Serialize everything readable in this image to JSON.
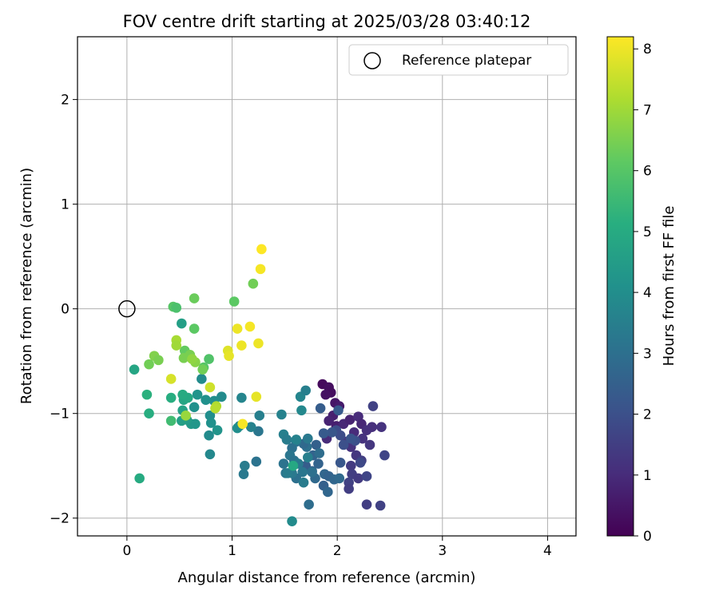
{
  "chart_data": {
    "type": "scatter",
    "title": "FOV centre drift starting at 2025/03/28 03:40:12",
    "xlabel": "Angular distance from reference (arcmin)",
    "ylabel": "Rotation from reference (arcmin)",
    "xlim": [
      -0.47,
      4.27
    ],
    "ylim": [
      -2.17,
      2.6
    ],
    "xticks": [
      0,
      1,
      2,
      3,
      4
    ],
    "yticks": [
      -2,
      -1,
      0,
      1,
      2
    ],
    "grid": true,
    "legend": {
      "placement": "top-right",
      "entries": [
        "Reference platepar"
      ]
    },
    "reference_point": {
      "x": 0,
      "y": 0
    },
    "colorbar": {
      "label": "Hours from first FF file",
      "colormap": "viridis",
      "range": [
        0,
        8.2
      ],
      "ticks": [
        0,
        1,
        2,
        3,
        4,
        5,
        6,
        7,
        8
      ]
    },
    "points": [
      [
        1.86,
        -0.72,
        0.2
      ],
      [
        1.92,
        -0.75,
        0.3
      ],
      [
        1.94,
        -0.8,
        0.3
      ],
      [
        1.89,
        -0.82,
        0.4
      ],
      [
        1.98,
        -0.9,
        0.5
      ],
      [
        2.02,
        -0.93,
        0.6
      ],
      [
        1.96,
        -1.02,
        0.7
      ],
      [
        1.92,
        -1.07,
        0.8
      ],
      [
        1.99,
        -1.12,
        0.7
      ],
      [
        2.06,
        -1.1,
        0.9
      ],
      [
        2.12,
        -1.06,
        0.8
      ],
      [
        2.2,
        -1.03,
        1.0
      ],
      [
        2.23,
        -1.1,
        0.9
      ],
      [
        2.16,
        -1.18,
        1.0
      ],
      [
        2.28,
        -1.16,
        1.1
      ],
      [
        2.33,
        -1.13,
        1.1
      ],
      [
        2.42,
        -1.13,
        1.2
      ],
      [
        2.24,
        -1.24,
        1.2
      ],
      [
        2.31,
        -1.3,
        1.3
      ],
      [
        2.08,
        -1.27,
        1.4
      ],
      [
        2.13,
        -1.32,
        1.2
      ],
      [
        2.18,
        -1.4,
        1.3
      ],
      [
        2.23,
        -1.45,
        1.5
      ],
      [
        2.13,
        -1.5,
        1.4
      ],
      [
        2.14,
        -1.58,
        1.5
      ],
      [
        2.2,
        -1.62,
        1.4
      ],
      [
        2.11,
        -1.66,
        1.6
      ],
      [
        2.11,
        -1.72,
        1.5
      ],
      [
        2.28,
        -1.6,
        1.7
      ],
      [
        2.28,
        -1.87,
        1.5
      ],
      [
        2.41,
        -1.88,
        1.6
      ],
      [
        2.45,
        -1.4,
        1.7
      ],
      [
        2.34,
        -0.93,
        1.6
      ],
      [
        2.22,
        -1.47,
        1.8
      ],
      [
        1.9,
        -1.24,
        1.0
      ],
      [
        1.99,
        -1.16,
        1.9
      ],
      [
        2.03,
        -1.21,
        1.9
      ],
      [
        2.06,
        -1.3,
        2.0
      ],
      [
        2.17,
        -1.26,
        2.0
      ],
      [
        2.13,
        -1.24,
        2.1
      ],
      [
        1.95,
        -1.18,
        2.2
      ],
      [
        2.03,
        -1.47,
        2.2
      ],
      [
        2.01,
        -0.97,
        2.3
      ],
      [
        1.84,
        -0.95,
        2.4
      ],
      [
        1.87,
        -1.19,
        2.3
      ],
      [
        1.8,
        -1.3,
        2.5
      ],
      [
        1.77,
        -1.4,
        2.6
      ],
      [
        1.7,
        -1.5,
        2.4
      ],
      [
        1.76,
        -1.55,
        2.5
      ],
      [
        1.82,
        -1.48,
        2.6
      ],
      [
        1.88,
        -1.58,
        2.7
      ],
      [
        1.92,
        -1.6,
        2.6
      ],
      [
        1.97,
        -1.63,
        2.7
      ],
      [
        2.02,
        -1.62,
        2.8
      ],
      [
        1.87,
        -1.69,
        2.5
      ],
      [
        1.91,
        -1.75,
        2.7
      ],
      [
        1.73,
        -1.87,
        2.9
      ],
      [
        1.79,
        -1.62,
        2.8
      ],
      [
        1.76,
        -1.56,
        3.0
      ],
      [
        1.83,
        -1.38,
        2.9
      ],
      [
        1.71,
        -1.32,
        3.0
      ],
      [
        1.68,
        -1.29,
        2.8
      ],
      [
        1.61,
        -1.27,
        3.1
      ],
      [
        1.57,
        -1.33,
        3.0
      ],
      [
        1.55,
        -1.4,
        3.2
      ],
      [
        1.59,
        -1.45,
        3.1
      ],
      [
        1.63,
        -1.48,
        3.3
      ],
      [
        1.67,
        -1.56,
        3.2
      ],
      [
        1.61,
        -1.62,
        3.0
      ],
      [
        1.57,
        -1.57,
        3.3
      ],
      [
        1.49,
        -1.48,
        3.1
      ],
      [
        1.51,
        -1.57,
        3.2
      ],
      [
        1.53,
        -1.57,
        3.4
      ],
      [
        1.68,
        -1.66,
        3.4
      ],
      [
        1.72,
        -1.42,
        3.5
      ],
      [
        1.72,
        -1.24,
        3.3
      ],
      [
        1.49,
        -1.2,
        3.5
      ],
      [
        1.52,
        -1.25,
        3.4
      ],
      [
        1.47,
        -1.01,
        3.6
      ],
      [
        1.65,
        -0.84,
        3.7
      ],
      [
        1.7,
        -0.78,
        3.5
      ],
      [
        1.66,
        -0.97,
        3.8
      ],
      [
        1.61,
        -1.25,
        3.6
      ],
      [
        1.57,
        -2.03,
        3.9
      ],
      [
        1.25,
        -1.17,
        3.2
      ],
      [
        1.26,
        -1.02,
        3.5
      ],
      [
        1.23,
        -1.46,
        3.1
      ],
      [
        1.11,
        -1.58,
        3.3
      ],
      [
        1.12,
        -1.5,
        3.4
      ],
      [
        1.18,
        -1.13,
        3.6
      ],
      [
        1.09,
        -0.85,
        3.7
      ],
      [
        1.07,
        -1.12,
        3.8
      ],
      [
        1.05,
        -1.14,
        4.0
      ],
      [
        0.9,
        -0.84,
        3.9
      ],
      [
        0.79,
        -1.39,
        3.8
      ],
      [
        0.78,
        -1.21,
        3.9
      ],
      [
        0.79,
        -1.02,
        4.0
      ],
      [
        0.8,
        -1.09,
        4.1
      ],
      [
        0.83,
        -0.88,
        4.0
      ],
      [
        0.86,
        -1.16,
        4.2
      ],
      [
        0.75,
        -0.87,
        4.1
      ],
      [
        0.71,
        -0.67,
        3.9
      ],
      [
        0.67,
        -0.82,
        4.2
      ],
      [
        0.64,
        -0.94,
        4.1
      ],
      [
        0.61,
        -1.1,
        4.4
      ],
      [
        0.65,
        -1.1,
        4.3
      ],
      [
        0.57,
        -1.06,
        4.5
      ],
      [
        0.52,
        -1.07,
        4.6
      ],
      [
        0.53,
        -0.97,
        4.7
      ],
      [
        0.54,
        -0.87,
        4.8
      ],
      [
        0.58,
        -0.85,
        4.9
      ],
      [
        0.53,
        -0.82,
        5.0
      ],
      [
        0.42,
        -0.85,
        5.1
      ],
      [
        0.52,
        -0.14,
        4.6
      ],
      [
        0.12,
        -1.62,
        5.0
      ],
      [
        0.07,
        -0.58,
        4.8
      ],
      [
        0.19,
        -0.82,
        5.2
      ],
      [
        0.21,
        -1.0,
        5.1
      ],
      [
        0.42,
        -1.07,
        5.6
      ],
      [
        1.58,
        -1.5,
        4.9
      ],
      [
        0.64,
        0.1,
        6.3
      ],
      [
        0.64,
        -0.19,
        6.1
      ],
      [
        0.44,
        0.02,
        6.0
      ],
      [
        0.47,
        0.01,
        5.8
      ],
      [
        0.78,
        -0.48,
        5.9
      ],
      [
        0.73,
        -0.56,
        6.0
      ],
      [
        0.72,
        -0.58,
        6.4
      ],
      [
        0.55,
        -0.4,
        6.2
      ],
      [
        0.6,
        -0.44,
        6.5
      ],
      [
        0.54,
        -0.47,
        6.5
      ],
      [
        0.65,
        -0.51,
        6.7
      ],
      [
        0.62,
        -0.48,
        6.8
      ],
      [
        0.26,
        -0.45,
        6.6
      ],
      [
        0.3,
        -0.49,
        6.5
      ],
      [
        0.21,
        -0.53,
        6.4
      ],
      [
        1.02,
        0.07,
        6.1
      ],
      [
        1.2,
        0.24,
        6.4
      ],
      [
        0.47,
        -0.3,
        7.1
      ],
      [
        0.47,
        -0.35,
        7.0
      ],
      [
        0.56,
        -1.02,
        6.9
      ],
      [
        0.85,
        -0.93,
        7.2
      ],
      [
        0.84,
        -0.95,
        7.3
      ],
      [
        0.79,
        -0.75,
        7.6
      ],
      [
        0.42,
        -0.67,
        7.7
      ],
      [
        0.96,
        -0.4,
        7.8
      ],
      [
        0.97,
        -0.45,
        7.9
      ],
      [
        1.05,
        -0.19,
        8.0
      ],
      [
        1.09,
        -0.35,
        8.0
      ],
      [
        1.17,
        -0.17,
        8.1
      ],
      [
        1.25,
        -0.33,
        8.0
      ],
      [
        1.23,
        -0.84,
        7.9
      ],
      [
        1.1,
        -1.1,
        8.1
      ],
      [
        1.27,
        0.38,
        8.1
      ],
      [
        1.28,
        0.57,
        8.2
      ]
    ]
  }
}
